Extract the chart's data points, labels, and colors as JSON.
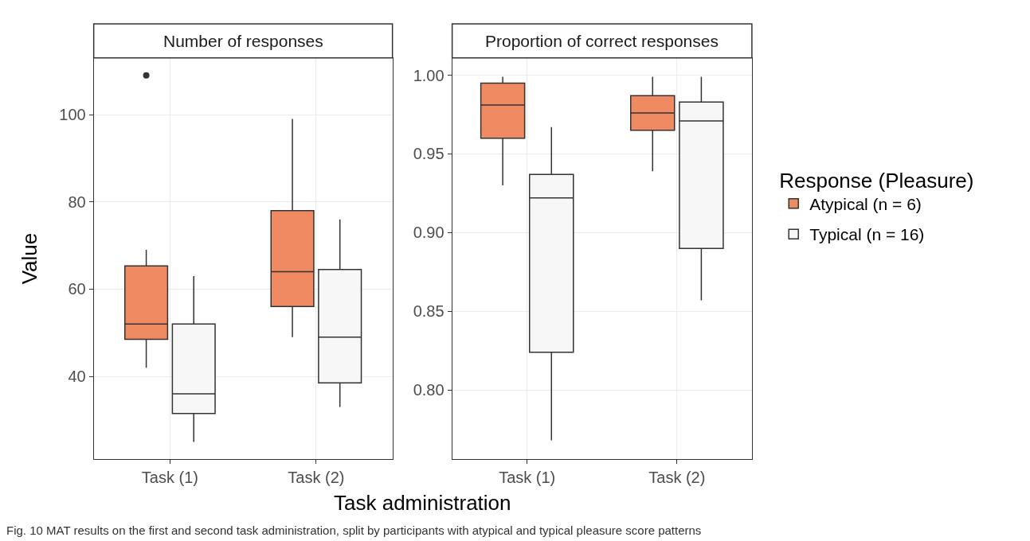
{
  "chart_data": [
    {
      "type": "box",
      "title": "Number of responses",
      "ylabel": "Value",
      "xlabel": "Task administration",
      "categories": [
        "Task (1)",
        "Task (2)"
      ],
      "ylim": [
        21,
        113
      ],
      "yticks": [
        40,
        60,
        80,
        100
      ],
      "grid": true,
      "annotations": [
        "Fig. 10 MAT results on the first and second task administration, split by participants with atypical and typical pleasure score patterns"
      ],
      "series": [
        {
          "color": "#ef8a62",
          "boxes": [
            {
              "low": 42,
              "q1": 48.5,
              "median": 52,
              "q3": 65.3,
              "high": 69,
              "outliers": [
                109
              ]
            },
            {
              "low": 49,
              "q1": 56,
              "median": 64,
              "q3": 78,
              "high": 99
            }
          ]
        },
        {
          "color": "#f7f7f7",
          "boxes": [
            {
              "low": 25,
              "q1": 31.5,
              "median": 36,
              "q3": 52,
              "high": 63
            },
            {
              "low": 33,
              "q1": 38.5,
              "median": 49,
              "q3": 64.5,
              "high": 76
            }
          ]
        }
      ]
    },
    {
      "type": "box",
      "title": "Proportion of correct responses",
      "categories": [
        "Task (1)",
        "Task (2)"
      ],
      "ylim": [
        0.756,
        1.011
      ],
      "yticks": [
        {
          "value": 0.8,
          "label": "0.80"
        },
        {
          "value": 0.85,
          "label": "0.85"
        },
        {
          "value": 0.9,
          "label": "0.90"
        },
        {
          "value": 0.95,
          "label": "0.95"
        },
        {
          "value": 1.0,
          "label": "1.00"
        }
      ],
      "grid": true,
      "legend": "right",
      "legend_title": "Response (Pleasure)",
      "series": [
        {
          "name": "Atypical (n = 6)",
          "color": "#ef8a62",
          "boxes": [
            {
              "low": 0.93,
              "q1": 0.96,
              "median": 0.981,
              "q3": 0.995,
              "high": 0.999
            },
            {
              "low": 0.939,
              "q1": 0.965,
              "median": 0.976,
              "q3": 0.987,
              "high": 0.999
            }
          ]
        },
        {
          "name": "Typical (n = 16)",
          "color": "#f7f7f7",
          "boxes": [
            {
              "low": 0.768,
              "q1": 0.824,
              "median": 0.922,
              "q3": 0.937,
              "high": 0.967
            },
            {
              "low": 0.857,
              "q1": 0.89,
              "median": 0.971,
              "q3": 0.983,
              "high": 0.999
            }
          ]
        }
      ]
    }
  ]
}
